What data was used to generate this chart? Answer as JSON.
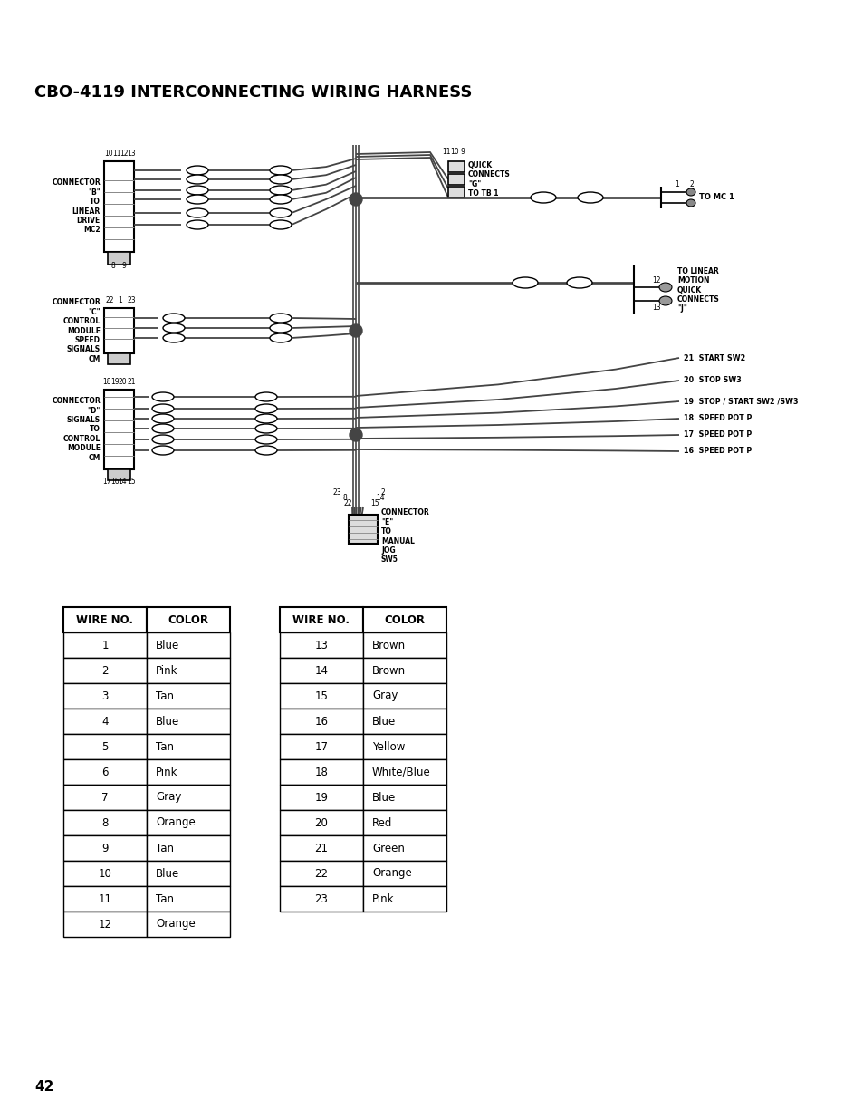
{
  "title": "CBO-4119 INTERCONNECTING WIRING HARNESS",
  "page_number": "42",
  "bg": "#ffffff",
  "table1": {
    "headers": [
      "WIRE NO.",
      "COLOR"
    ],
    "rows": [
      [
        "1",
        "Blue"
      ],
      [
        "2",
        "Pink"
      ],
      [
        "3",
        "Tan"
      ],
      [
        "4",
        "Blue"
      ],
      [
        "5",
        "Tan"
      ],
      [
        "6",
        "Pink"
      ],
      [
        "7",
        "Gray"
      ],
      [
        "8",
        "Orange"
      ],
      [
        "9",
        "Tan"
      ],
      [
        "10",
        "Blue"
      ],
      [
        "11",
        "Tan"
      ],
      [
        "12",
        "Orange"
      ]
    ]
  },
  "table2": {
    "headers": [
      "WIRE NO.",
      "COLOR"
    ],
    "rows": [
      [
        "13",
        "Brown"
      ],
      [
        "14",
        "Brown"
      ],
      [
        "15",
        "Gray"
      ],
      [
        "16",
        "Blue"
      ],
      [
        "17",
        "Yellow"
      ],
      [
        "18",
        "White/Blue"
      ],
      [
        "19",
        "Blue"
      ],
      [
        "20",
        "Red"
      ],
      [
        "21",
        "Green"
      ],
      [
        "22",
        "Orange"
      ],
      [
        "23",
        "Pink"
      ]
    ]
  },
  "lbl_conn_b": "CONNECTOR\n\"B\"\nTO\nLINEAR\nDRIVE\nMC2",
  "lbl_conn_c": "CONNECTOR\n\"C\"\nCONTROL\nMODULE\nSPEED\nSIGNALS\nCM",
  "lbl_conn_d": "CONNECTOR\n\"D\"\nSIGNALS\nTO\nCONTROL\nMODULE\nCM",
  "lbl_conn_e": "CONNECTOR\n\"E\"\nTO\nMANUAL\nJOG\nSW5",
  "lbl_qc_g": "QUICK\nCONNECTS\n\"G\"\nTO TB 1",
  "lbl_mc1": "TO MC 1",
  "lbl_lm": "TO LINEAR\nMOTION\nQUICK\nCONNECTS\n\"J\"",
  "right_labels": [
    "21  START SW2",
    "20  STOP SW3",
    "19  STOP / START SW2 /SW3",
    "18  SPEED POT P",
    "17  SPEED POT P",
    "16  SPEED POT P"
  ]
}
